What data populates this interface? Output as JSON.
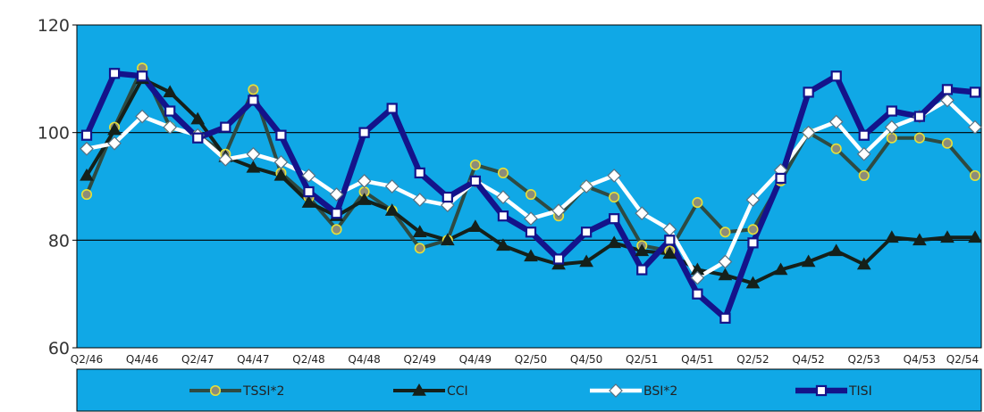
{
  "chart_data": {
    "type": "line",
    "ylim": [
      60,
      120
    ],
    "yticks": [
      60,
      80,
      100,
      120
    ],
    "grid": true,
    "legend_position": "bottom",
    "x": [
      "Q2/46",
      "Q3/46",
      "Q4/46",
      "Q1/47",
      "Q2/47",
      "Q3/47",
      "Q4/47",
      "Q1/48",
      "Q2/48",
      "Q3/48",
      "Q4/48",
      "Q1/49",
      "Q2/49",
      "Q3/49",
      "Q4/49",
      "Q1/50",
      "Q2/50",
      "Q3/50",
      "Q4/50",
      "Q1/51",
      "Q2/51",
      "Q3/51",
      "Q4/51",
      "Q1/52",
      "Q2/52",
      "Q3/52",
      "Q4/52",
      "Q1/53",
      "Q2/53",
      "Q3/53",
      "Q4/53",
      "Q1/54",
      "Q2/54"
    ],
    "xtick_labels": [
      "Q2/46",
      "Q4/46",
      "Q2/47",
      "Q4/47",
      "Q2/48",
      "Q4/48",
      "Q2/49",
      "Q4/49",
      "Q2/50",
      "Q4/50",
      "Q2/51",
      "Q4/51",
      "Q2/52",
      "Q4/52",
      "Q2/53",
      "Q4/53",
      "Q2/54"
    ],
    "highlight_tick": "Q2/54",
    "highlight_color": "#1f3fd0",
    "plot_bg": "#10a8e6",
    "legend_bg": "#10a8e6",
    "series": [
      {
        "name": "TSSI*2",
        "marker": "circle",
        "line_color": "#2e4a42",
        "marker_fill": "#8c8c7a",
        "marker_stroke": "#e6e03a",
        "values": [
          88.5,
          101,
          112,
          101,
          99.5,
          96,
          108,
          92.5,
          88,
          82,
          89,
          85.5,
          78.5,
          80,
          94,
          92.5,
          88.5,
          84.5,
          90,
          88,
          79,
          78,
          87,
          81.5,
          82,
          91,
          100,
          97,
          92,
          99,
          99,
          98,
          92
        ]
      },
      {
        "name": "CCI",
        "marker": "triangle",
        "line_color": "#15201a",
        "marker_fill": "#15201a",
        "marker_stroke": "#15201a",
        "values": [
          92,
          100.5,
          110,
          107.5,
          102.5,
          95.5,
          93.5,
          92,
          87,
          84.5,
          87.5,
          85.5,
          81.5,
          80,
          82.5,
          79,
          77,
          75.5,
          76,
          79.5,
          78,
          77.5,
          74.5,
          73.5,
          72,
          74.5,
          76,
          78,
          75.5,
          80.5,
          80,
          80.5,
          80.5
        ]
      },
      {
        "name": "BSI*2",
        "marker": "diamond",
        "line_color": "#ffffff",
        "marker_fill": "#ffffff",
        "marker_stroke": "#5a7080",
        "values": [
          97,
          98,
          103,
          101,
          99.5,
          95,
          96,
          94.5,
          92,
          88.5,
          91,
          90,
          87.5,
          86.5,
          91,
          88,
          84,
          85.5,
          90,
          92,
          85,
          82,
          73,
          76,
          87.5,
          93,
          100,
          102,
          96,
          101,
          103,
          106,
          101
        ]
      },
      {
        "name": "TISI",
        "marker": "square",
        "line_color": "#14138a",
        "marker_fill": "#ffffff",
        "marker_stroke": "#14138a",
        "values": [
          99.5,
          111,
          110.5,
          104,
          99,
          101,
          106,
          99.5,
          89,
          85,
          100,
          104.5,
          92.5,
          88,
          91,
          84.5,
          81.5,
          76.5,
          81.5,
          84,
          74.5,
          80,
          70,
          65.5,
          79.5,
          91.5,
          107.5,
          110.5,
          99.5,
          104,
          103,
          108,
          107.5
        ]
      }
    ]
  }
}
